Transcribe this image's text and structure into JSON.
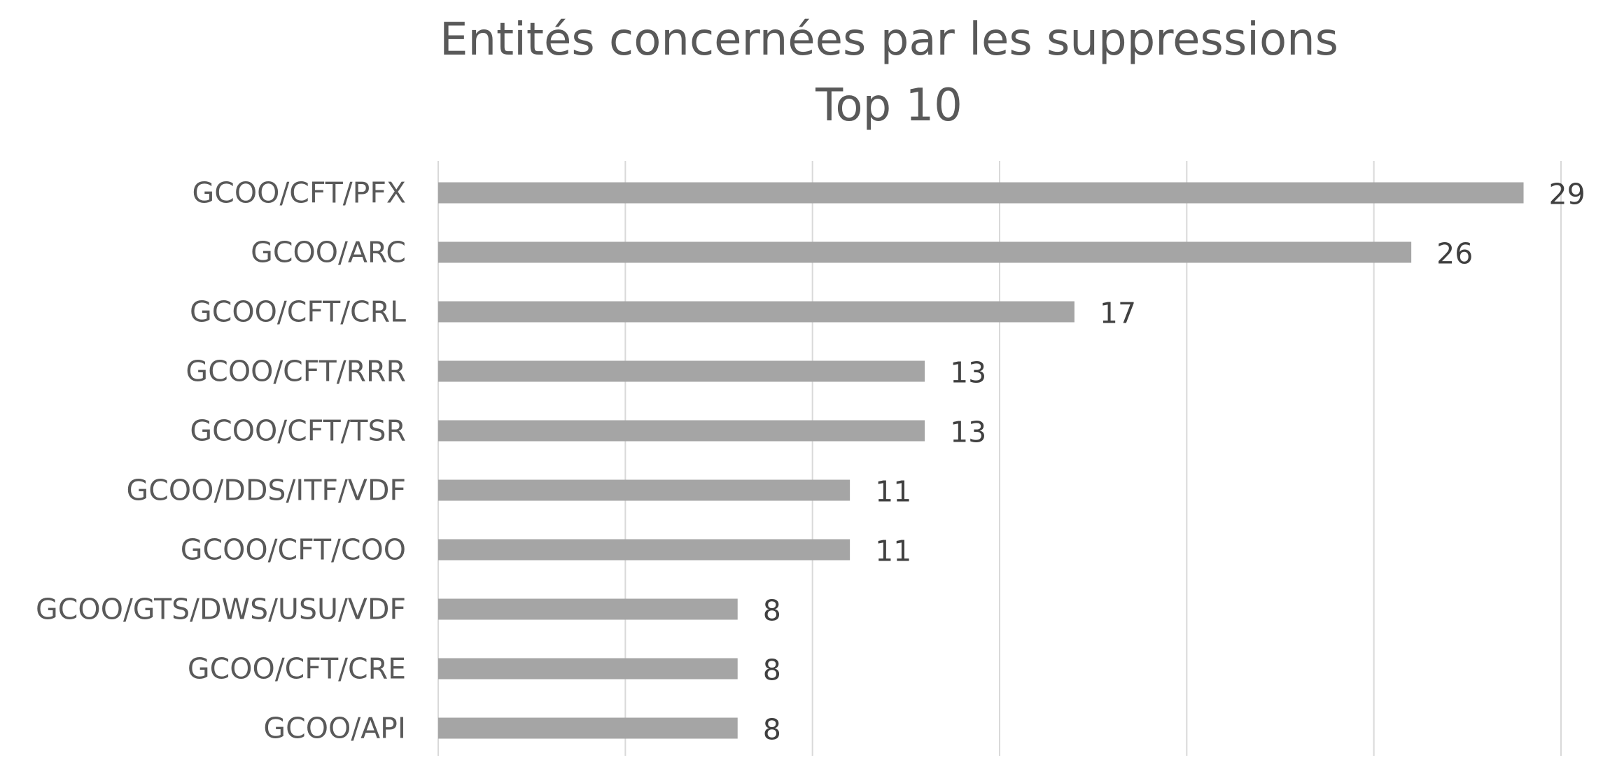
{
  "chart_data": {
    "type": "bar",
    "orientation": "horizontal",
    "title": "Entités concernées par les suppressions",
    "subtitle": "Top 10",
    "categories": [
      "GCOO/CFT/PFX",
      "GCOO/ARC",
      "GCOO/CFT/CRL",
      "GCOO/CFT/RRR",
      "GCOO/CFT/TSR",
      "GCOO/DDS/ITF/VDF",
      "GCOO/CFT/COO",
      "GCOO/GTS/DWS/USU/VDF",
      "GCOO/CFT/CRE",
      "GCOO/API"
    ],
    "values": [
      29,
      26,
      17,
      13,
      13,
      11,
      11,
      8,
      8,
      8
    ],
    "xlim": [
      0,
      30
    ],
    "x_gridline_step": 5,
    "grid": true,
    "show_tick_labels": false,
    "data_labels": true,
    "bar_color": "#a5a5a5",
    "gridline_color": "#d9d9d9",
    "label_color": "#595959"
  }
}
